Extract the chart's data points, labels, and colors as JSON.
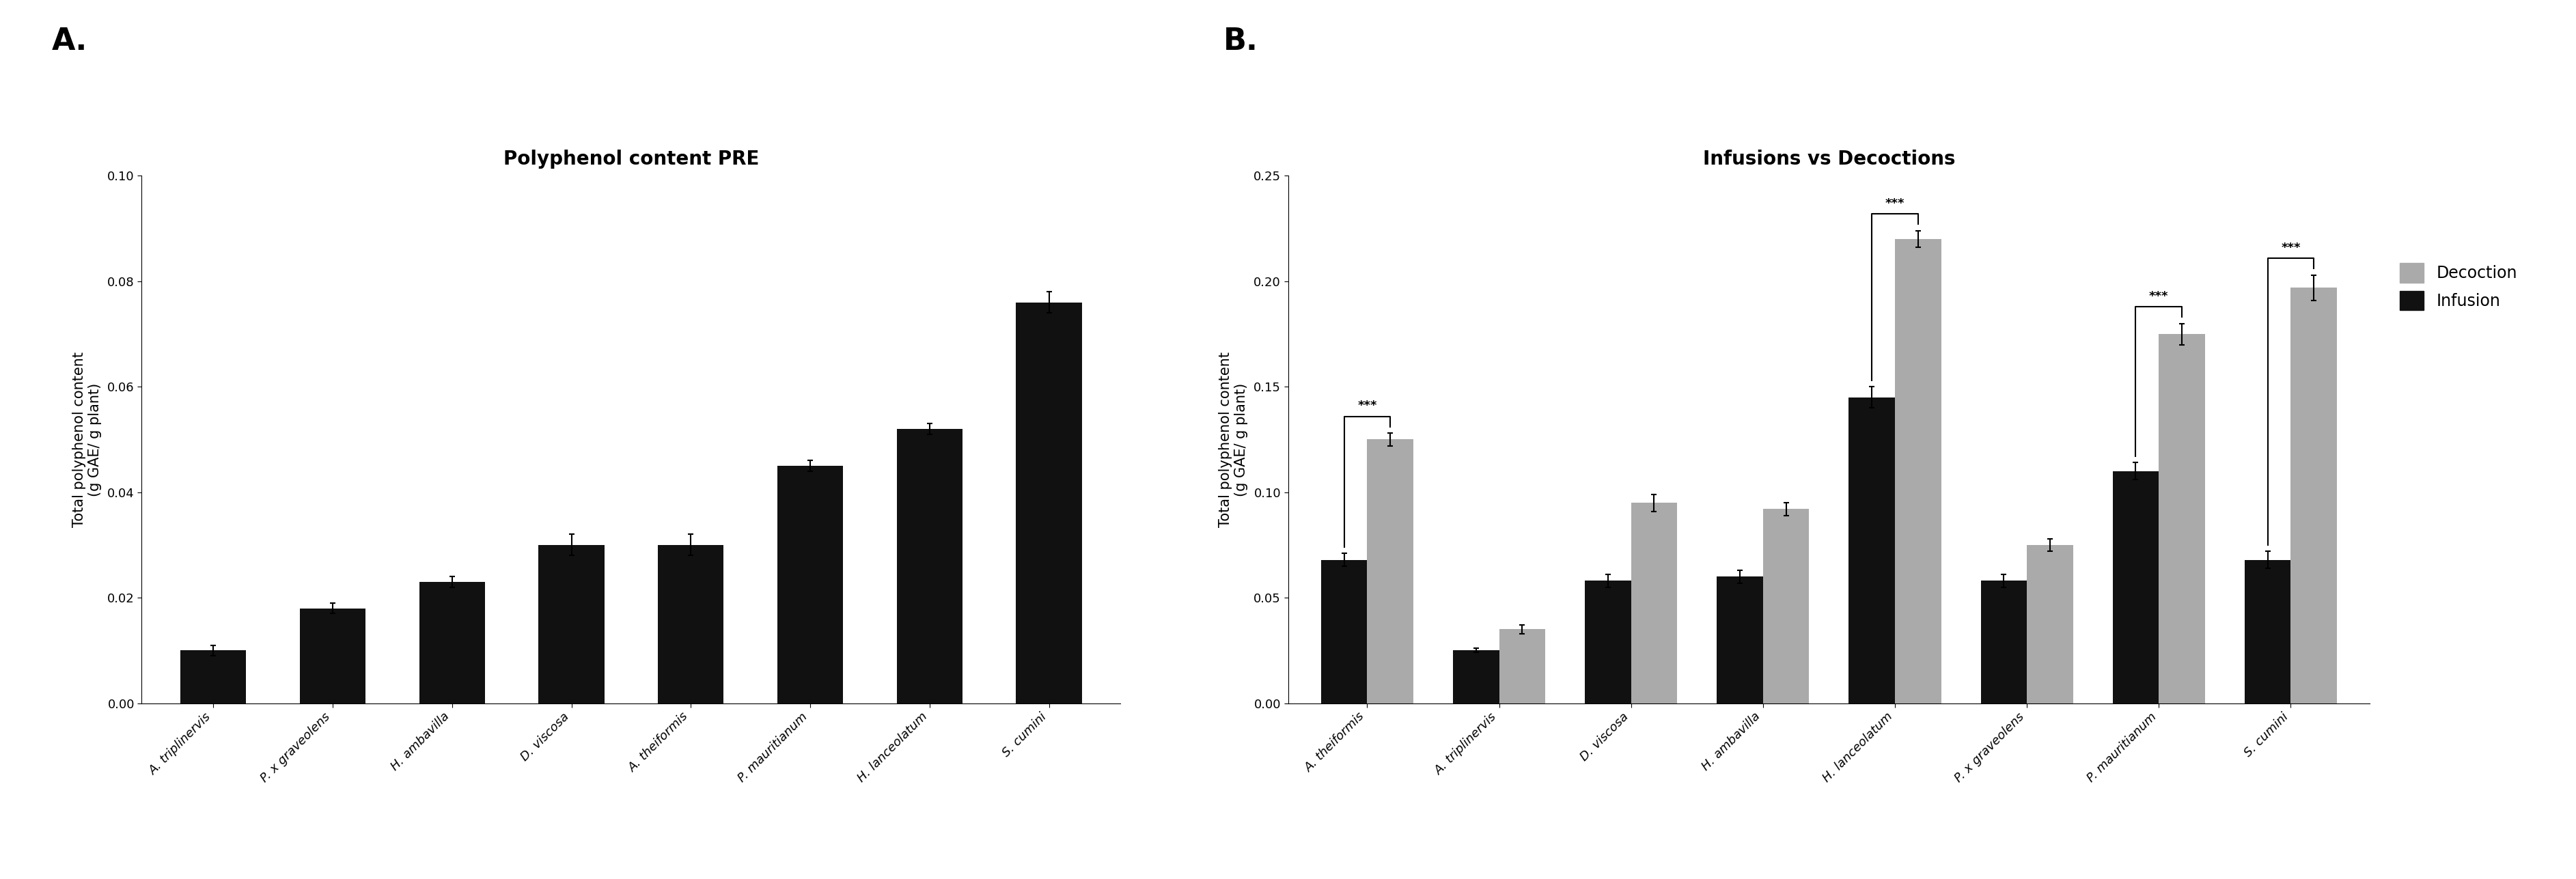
{
  "panel_a": {
    "title": "Polyphenol content PRE",
    "categories": [
      "A. triplinervis",
      "P. x graveolens",
      "H. ambavilla",
      "D. viscosa",
      "A. theiformis",
      "P. mauritianum",
      "H. lanceolatum",
      "S. cumini"
    ],
    "values": [
      0.01,
      0.018,
      0.023,
      0.03,
      0.03,
      0.045,
      0.052,
      0.076
    ],
    "errors": [
      0.001,
      0.001,
      0.001,
      0.002,
      0.002,
      0.001,
      0.001,
      0.002
    ],
    "bar_color": "#111111",
    "ylabel": "Total polyphenol content\n(g GAE/ g plant)",
    "ylim": [
      0,
      0.1
    ],
    "yticks": [
      0.0,
      0.02,
      0.04,
      0.06,
      0.08,
      0.1
    ]
  },
  "panel_b": {
    "title": "Infusions vs Decoctions",
    "categories": [
      "A. theiformis",
      "A. triplinervis",
      "D. viscosa",
      "H. ambavilla",
      "H. lanceolatum",
      "P. x graveolens",
      "P. mauritianum",
      "S. cumini"
    ],
    "decoction_values": [
      0.125,
      0.035,
      0.095,
      0.092,
      0.22,
      0.075,
      0.175,
      0.197
    ],
    "decoction_errors": [
      0.003,
      0.002,
      0.004,
      0.003,
      0.004,
      0.003,
      0.005,
      0.006
    ],
    "infusion_values": [
      0.068,
      0.025,
      0.058,
      0.06,
      0.145,
      0.058,
      0.11,
      0.068
    ],
    "infusion_errors": [
      0.003,
      0.001,
      0.003,
      0.003,
      0.005,
      0.003,
      0.004,
      0.004
    ],
    "decoction_color": "#aaaaaa",
    "infusion_color": "#111111",
    "ylabel": "Total polyphenol content\n(g GAE/ g plant)",
    "ylim": [
      0,
      0.25
    ],
    "yticks": [
      0.0,
      0.05,
      0.1,
      0.15,
      0.2,
      0.25
    ],
    "sig_groups": [
      0,
      4,
      6,
      7
    ]
  },
  "background_color": "#ffffff",
  "panel_label_fontsize": 32,
  "title_fontsize": 20,
  "tick_fontsize": 13,
  "ylabel_fontsize": 15,
  "legend_fontsize": 17
}
